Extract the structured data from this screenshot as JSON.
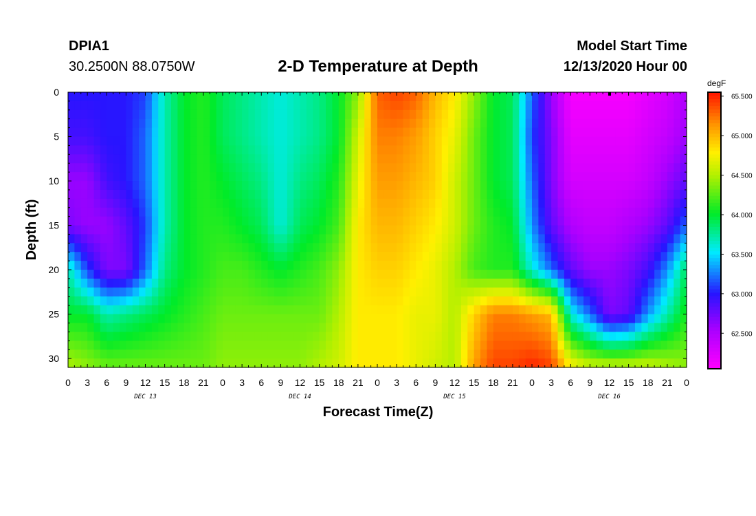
{
  "header": {
    "station": "DPIA1",
    "coords": "30.2500N 88.0750W",
    "title": "2-D Temperature at Depth",
    "model_start_label": "Model Start Time",
    "model_start_value": "12/13/2020 Hour 00"
  },
  "chart_data": {
    "type": "heatmap",
    "title": "2-D Temperature at Depth",
    "xlabel": "Forecast Time(Z)",
    "ylabel": "Depth (ft)",
    "x_tick_labels": [
      "0",
      "3",
      "6",
      "9",
      "12",
      "15",
      "18",
      "21",
      "0",
      "3",
      "6",
      "9",
      "12",
      "15",
      "18",
      "21",
      "0",
      "3",
      "6",
      "9",
      "12",
      "15",
      "18",
      "21",
      "0",
      "3",
      "6",
      "9",
      "12",
      "15",
      "18",
      "21",
      "0"
    ],
    "day_labels": [
      {
        "label": "DEC 13",
        "hour": 12
      },
      {
        "label": "DEC 14",
        "hour": 36
      },
      {
        "label": "DEC 15",
        "hour": 60
      },
      {
        "label": "DEC 16",
        "hour": 84
      }
    ],
    "xlim_hours": [
      0,
      96
    ],
    "ylim_ft": [
      0,
      31
    ],
    "y_ticks": [
      0,
      5,
      10,
      15,
      20,
      25,
      30
    ],
    "colorbar": {
      "unit": "degF",
      "labels": [
        "65.500",
        "65.000",
        "64.500",
        "64.000",
        "63.500",
        "63.000",
        "62.500"
      ],
      "vmin": 62.05,
      "vmax": 65.55
    },
    "hours": [
      0,
      3,
      6,
      9,
      12,
      15,
      18,
      21,
      24,
      27,
      30,
      33,
      36,
      39,
      42,
      45,
      48,
      51,
      54,
      57,
      60,
      63,
      66,
      69,
      72,
      75,
      78,
      81,
      84,
      87,
      90,
      93,
      96
    ],
    "depths_ft": [
      0,
      5,
      10,
      15,
      20,
      25,
      31
    ],
    "temperature_degF": [
      [
        63.0,
        63.0,
        63.0,
        63.0,
        63.1,
        63.7,
        64.0,
        64.1,
        63.9,
        63.8,
        63.7,
        63.6,
        63.7,
        63.8,
        64.0,
        64.4,
        65.3,
        65.4,
        65.3,
        65.0,
        64.8,
        64.4,
        64.0,
        63.9,
        63.2,
        62.6,
        62.1,
        62.1,
        62.1,
        62.1,
        62.2,
        62.3,
        62.5
      ],
      [
        62.9,
        62.9,
        63.0,
        63.0,
        63.2,
        63.7,
        64.0,
        64.1,
        63.9,
        63.8,
        63.7,
        63.6,
        63.7,
        63.8,
        64.0,
        64.6,
        65.2,
        65.2,
        65.1,
        64.9,
        64.7,
        64.3,
        64.0,
        63.9,
        63.1,
        62.7,
        62.2,
        62.2,
        62.2,
        62.2,
        62.3,
        62.4,
        62.6
      ],
      [
        62.6,
        62.6,
        62.9,
        63.0,
        63.2,
        63.7,
        64.0,
        64.1,
        64.0,
        63.9,
        63.8,
        63.6,
        63.8,
        63.9,
        64.1,
        64.7,
        65.1,
        65.1,
        65.0,
        64.9,
        64.6,
        64.3,
        64.0,
        63.9,
        63.2,
        62.7,
        62.3,
        62.3,
        62.3,
        62.3,
        62.4,
        62.6,
        62.8
      ],
      [
        62.7,
        62.6,
        62.6,
        62.8,
        63.1,
        63.7,
        64.0,
        64.1,
        64.1,
        64.0,
        63.9,
        63.6,
        63.9,
        64.0,
        64.2,
        64.8,
        65.0,
        65.0,
        64.9,
        64.8,
        64.6,
        64.3,
        64.1,
        64.0,
        63.3,
        62.8,
        62.5,
        62.4,
        62.4,
        62.5,
        62.6,
        62.8,
        63.2
      ],
      [
        63.7,
        63.1,
        62.7,
        62.7,
        63.2,
        63.8,
        64.0,
        64.1,
        64.2,
        64.2,
        64.1,
        64.0,
        64.1,
        64.2,
        64.4,
        64.8,
        64.9,
        64.9,
        64.8,
        64.7,
        64.5,
        64.2,
        64.1,
        64.1,
        63.6,
        63.2,
        62.8,
        62.6,
        62.6,
        62.7,
        62.9,
        63.3,
        63.9
      ],
      [
        64.0,
        64.0,
        63.7,
        63.8,
        63.9,
        64.0,
        64.1,
        64.2,
        64.3,
        64.3,
        64.3,
        64.3,
        64.3,
        64.3,
        64.5,
        64.8,
        64.8,
        64.8,
        64.7,
        64.7,
        64.5,
        64.9,
        65.2,
        65.2,
        65.1,
        65.0,
        63.6,
        63.2,
        62.7,
        62.8,
        63.3,
        63.7,
        64.1
      ],
      [
        64.5,
        64.4,
        64.3,
        64.3,
        64.3,
        64.3,
        64.3,
        64.3,
        64.4,
        64.4,
        64.4,
        64.4,
        64.4,
        64.5,
        64.6,
        64.8,
        64.8,
        64.8,
        64.7,
        64.6,
        64.5,
        65.1,
        65.4,
        65.4,
        65.5,
        65.4,
        64.8,
        64.6,
        64.6,
        64.6,
        64.6,
        64.5,
        64.4
      ]
    ]
  }
}
